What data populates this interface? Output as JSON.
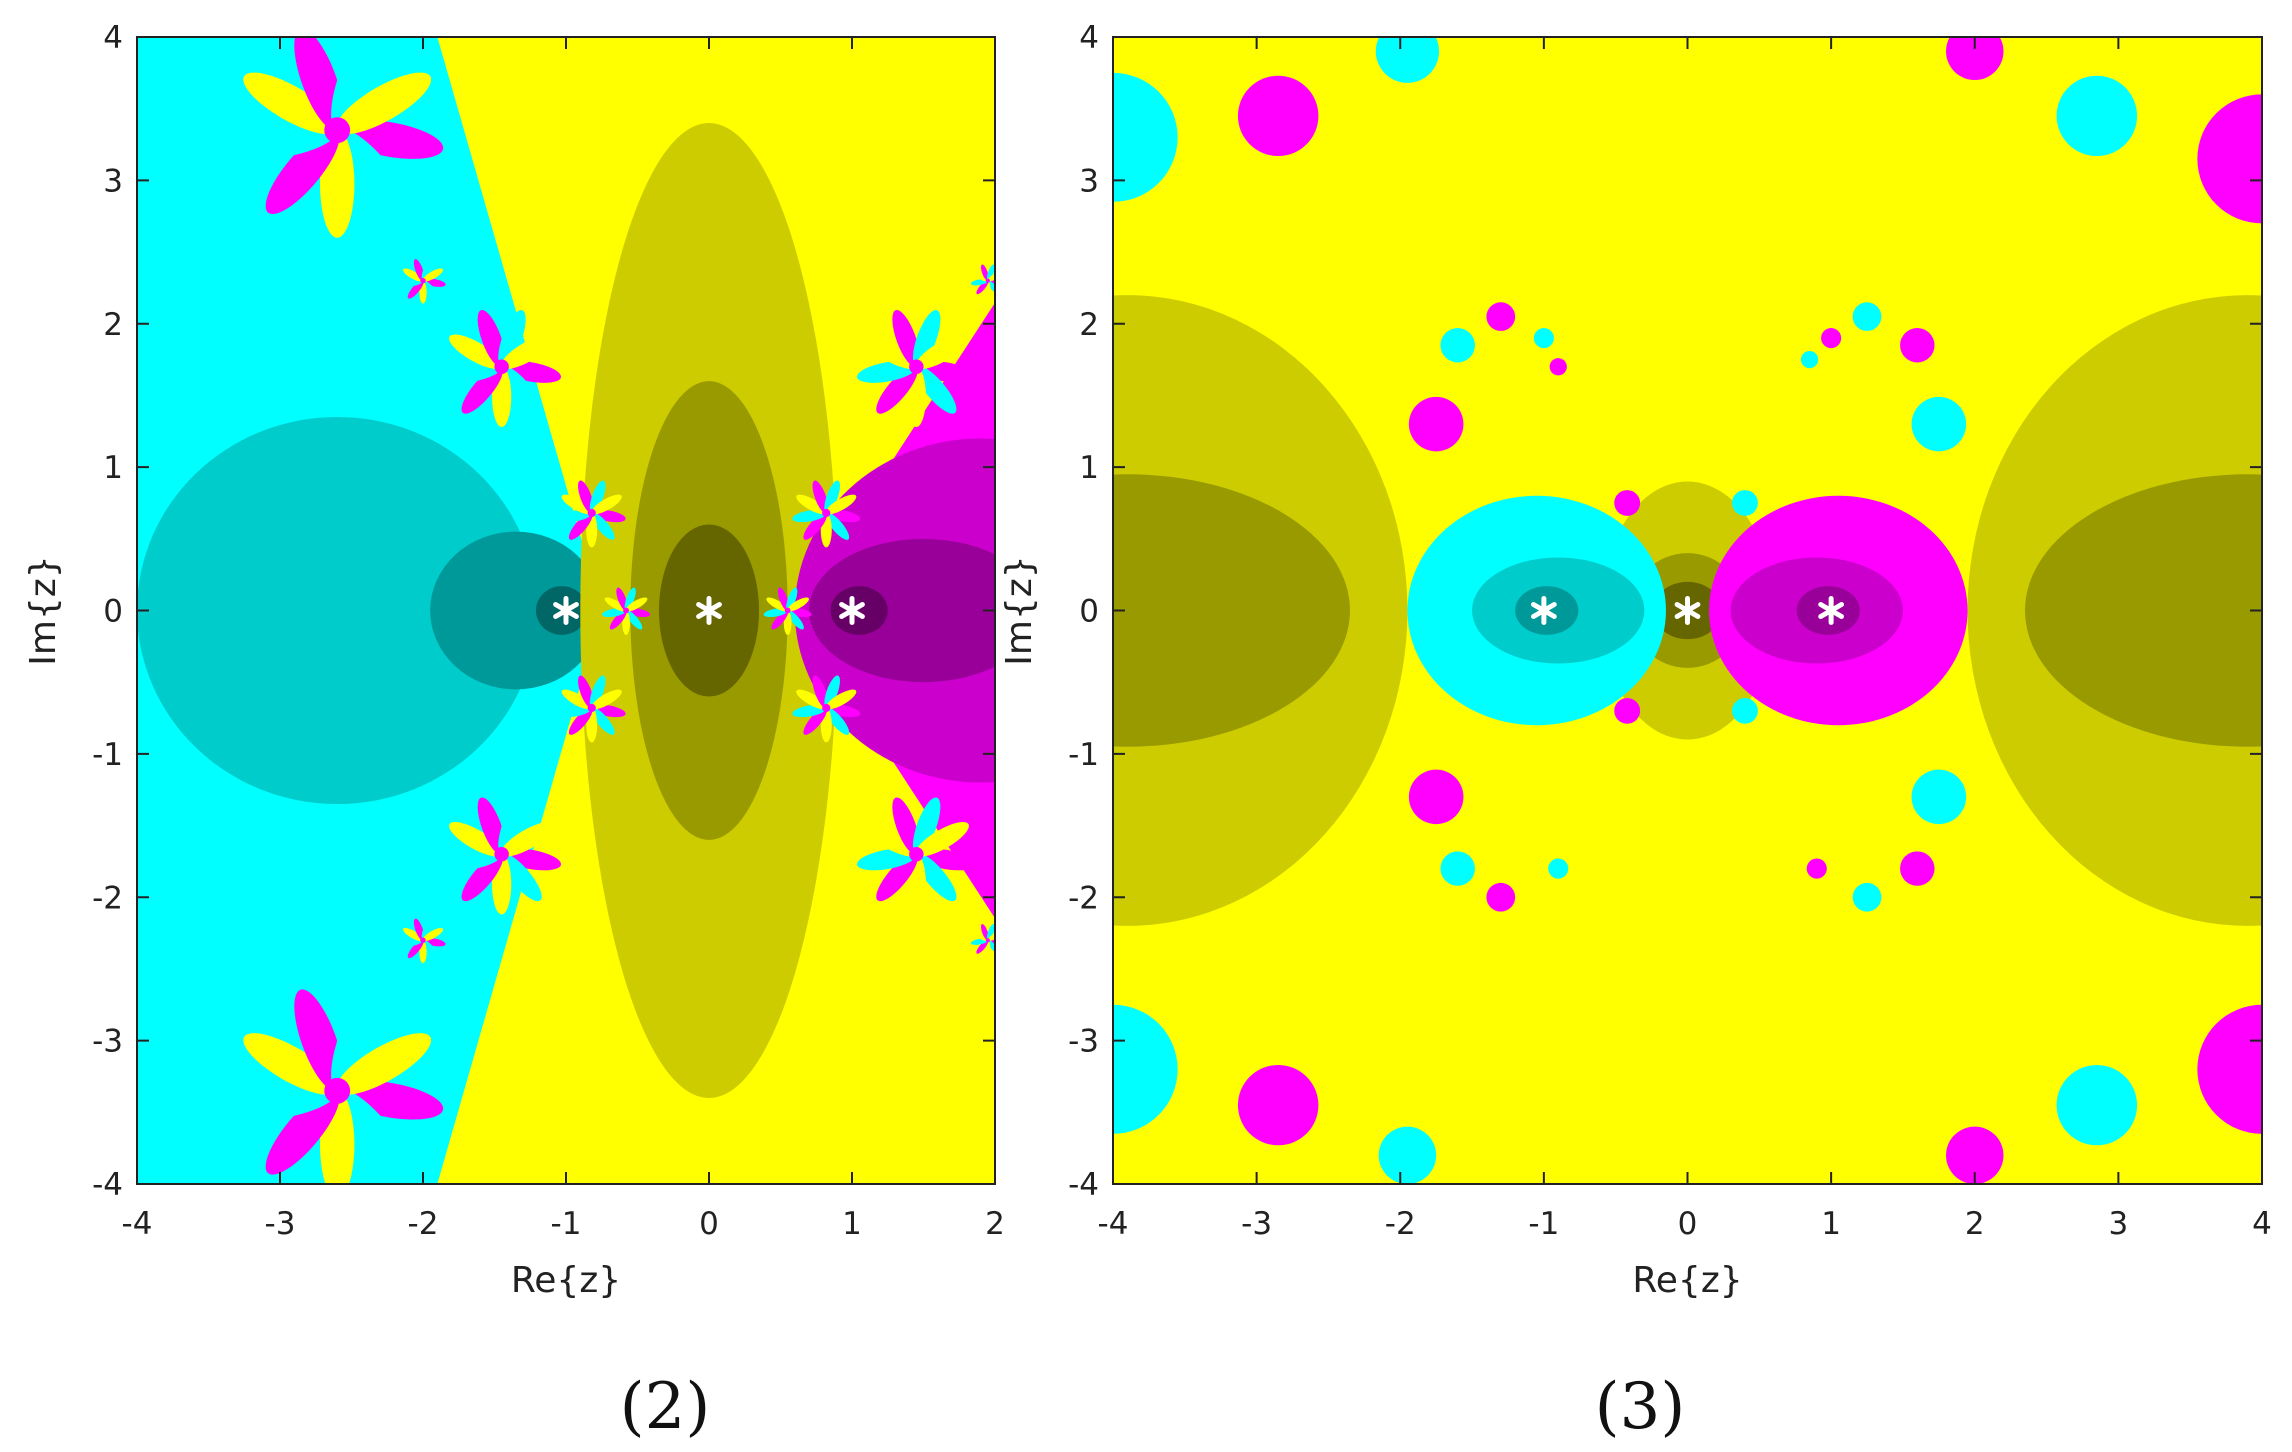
{
  "figure": {
    "colors": {
      "cyan_region": "#00ffff",
      "magenta_region": "#ff00ff",
      "yellow_region": "#ffff00",
      "cyan_shade_1": "#00cccc",
      "cyan_shade_2": "#009999",
      "cyan_shade_3": "#006666",
      "magenta_shade_1": "#cc00cc",
      "magenta_shade_2": "#990099",
      "magenta_shade_3": "#660066",
      "yellow_shade_1": "#cccc00",
      "yellow_shade_2": "#999900",
      "yellow_shade_3": "#666600",
      "root_marker": "#ffffff"
    }
  },
  "chart_data": [
    {
      "type": "heatmap",
      "panel_label": "(2)",
      "title": "",
      "xlabel": "Re{z}",
      "ylabel": "Im{z}",
      "xlim": [
        -4,
        2
      ],
      "ylim": [
        -4,
        4
      ],
      "xticks": [
        -4,
        -3,
        -2,
        -1,
        0,
        1,
        2
      ],
      "xtick_labels": [
        "-4",
        "-3",
        "-2",
        "-1",
        "0",
        "1",
        "2"
      ],
      "yticks": [
        -4,
        -3,
        -2,
        -1,
        0,
        1,
        2,
        3,
        4
      ],
      "ytick_labels": [
        "-4",
        "-3",
        "-2",
        "-1",
        "0",
        "1",
        "2",
        "3",
        "4"
      ],
      "background_basin": "yellow_region",
      "basin_regions": [
        {
          "basin": "cyan_region",
          "description": "left wedge",
          "boundary_x_at_top": -1.9,
          "boundary_x_at_center": -0.75
        },
        {
          "basin": "magenta_region",
          "description": "right wedge",
          "boundary_x_at_top": 2.0,
          "boundary_x_at_center": 0.6
        }
      ],
      "convergence_shading": [
        {
          "basin": "cyan",
          "levels": [
            {
              "shade": "cyan_shade_1",
              "cx": -2.6,
              "cy": 0,
              "rx": 1.4,
              "ry": 1.35
            },
            {
              "shade": "cyan_shade_2",
              "cx": -1.35,
              "cy": 0,
              "rx": 0.6,
              "ry": 0.55
            },
            {
              "shade": "cyan_shade_3",
              "cx": -1.03,
              "cy": 0,
              "rx": 0.18,
              "ry": 0.17
            }
          ]
        },
        {
          "basin": "yellow",
          "levels": [
            {
              "shade": "yellow_shade_1",
              "cx": 0,
              "cy": 0,
              "rx": 0.9,
              "ry": 3.4
            },
            {
              "shade": "yellow_shade_2",
              "cx": 0,
              "cy": 0,
              "rx": 0.55,
              "ry": 1.6
            },
            {
              "shade": "yellow_shade_3",
              "cx": 0,
              "cy": 0,
              "rx": 0.35,
              "ry": 0.6
            }
          ]
        },
        {
          "basin": "magenta",
          "levels": [
            {
              "shade": "magenta_shade_1",
              "cx": 1.9,
              "cy": 0,
              "rx": 1.3,
              "ry": 1.2
            },
            {
              "shade": "magenta_shade_2",
              "cx": 1.5,
              "cy": 0,
              "rx": 0.8,
              "ry": 0.5
            },
            {
              "shade": "magenta_shade_3",
              "cx": 1.05,
              "cy": 0,
              "rx": 0.2,
              "ry": 0.17
            }
          ]
        }
      ],
      "fractal_flowers": [
        {
          "x": -2.6,
          "y": 3.35,
          "size": 0.75
        },
        {
          "x": -2.6,
          "y": -3.35,
          "size": 0.75
        },
        {
          "x": -1.45,
          "y": 1.7,
          "size": 0.42
        },
        {
          "x": -1.45,
          "y": -1.7,
          "size": 0.42
        },
        {
          "x": 1.45,
          "y": 1.7,
          "size": 0.42
        },
        {
          "x": 1.45,
          "y": -1.7,
          "size": 0.42
        },
        {
          "x": -2.0,
          "y": 2.3,
          "size": 0.16
        },
        {
          "x": -2.0,
          "y": -2.3,
          "size": 0.16
        },
        {
          "x": -0.82,
          "y": 0.68,
          "size": 0.24
        },
        {
          "x": -0.82,
          "y": -0.68,
          "size": 0.24
        },
        {
          "x": 0.82,
          "y": 0.68,
          "size": 0.24
        },
        {
          "x": 0.82,
          "y": -0.68,
          "size": 0.24
        },
        {
          "x": -0.58,
          "y": 0,
          "size": 0.17
        },
        {
          "x": 0.55,
          "y": 0,
          "size": 0.17
        },
        {
          "x": 1.95,
          "y": 2.3,
          "size": 0.12
        },
        {
          "x": 1.95,
          "y": -2.3,
          "size": 0.12
        }
      ],
      "roots": [
        {
          "x": -1,
          "y": 0
        },
        {
          "x": 0,
          "y": 0
        },
        {
          "x": 1,
          "y": 0
        }
      ]
    },
    {
      "type": "heatmap",
      "panel_label": "(3)",
      "title": "",
      "xlabel": "Re{z}",
      "ylabel": "Im{z}",
      "xlim": [
        -4,
        4
      ],
      "ylim": [
        -4,
        4
      ],
      "xticks": [
        -4,
        -3,
        -2,
        -1,
        0,
        1,
        2,
        3,
        4
      ],
      "xtick_labels": [
        "-4",
        "-3",
        "-2",
        "-1",
        "0",
        "1",
        "2",
        "3",
        "4"
      ],
      "yticks": [
        -4,
        -3,
        -2,
        -1,
        0,
        1,
        2,
        3,
        4
      ],
      "ytick_labels": [
        "-4",
        "-3",
        "-2",
        "-1",
        "0",
        "1",
        "2",
        "3",
        "4"
      ],
      "background_basin": "yellow_region",
      "convergence_shading": [
        {
          "basin": "yellow",
          "levels": [
            {
              "shade": "yellow_shade_1",
              "cx": -3.9,
              "cy": 0,
              "rx": 1.95,
              "ry": 2.2
            },
            {
              "shade": "yellow_shade_2",
              "cx": -3.9,
              "cy": 0,
              "rx": 1.55,
              "ry": 0.95
            },
            {
              "shade": "yellow_shade_1",
              "cx": 3.9,
              "cy": 0,
              "rx": 1.95,
              "ry": 2.2
            },
            {
              "shade": "yellow_shade_2",
              "cx": 3.9,
              "cy": 0,
              "rx": 1.55,
              "ry": 0.95
            },
            {
              "shade": "yellow_shade_1",
              "cx": 0,
              "cy": 0,
              "rx": 0.6,
              "ry": 0.9
            },
            {
              "shade": "yellow_shade_2",
              "cx": 0,
              "cy": 0,
              "rx": 0.4,
              "ry": 0.4
            },
            {
              "shade": "yellow_shade_3",
              "cx": 0,
              "cy": 0,
              "rx": 0.24,
              "ry": 0.2
            }
          ]
        },
        {
          "basin": "cyan",
          "levels": [
            {
              "shade": "cyan_region",
              "cx": -1.05,
              "cy": 0,
              "rx": 0.9,
              "ry": 0.8
            },
            {
              "shade": "cyan_shade_1",
              "cx": -0.9,
              "cy": 0,
              "rx": 0.6,
              "ry": 0.37
            },
            {
              "shade": "cyan_shade_2",
              "cx": -0.98,
              "cy": 0,
              "rx": 0.22,
              "ry": 0.17
            }
          ]
        },
        {
          "basin": "magenta",
          "levels": [
            {
              "shade": "magenta_region",
              "cx": 1.05,
              "cy": 0,
              "rx": 0.9,
              "ry": 0.8
            },
            {
              "shade": "magenta_shade_1",
              "cx": 0.9,
              "cy": 0,
              "rx": 0.6,
              "ry": 0.37
            },
            {
              "shade": "magenta_shade_2",
              "cx": 0.98,
              "cy": 0,
              "rx": 0.22,
              "ry": 0.17
            }
          ]
        }
      ],
      "basin_blobs": [
        {
          "basin": "cyan_region",
          "x": -1.95,
          "y": 3.9,
          "r": 0.22
        },
        {
          "basin": "magenta_region",
          "x": -2.85,
          "y": 3.45,
          "r": 0.28
        },
        {
          "basin": "cyan_region",
          "x": -4.0,
          "y": 3.3,
          "r": 0.45
        },
        {
          "basin": "magenta_region",
          "x": 2.0,
          "y": 3.9,
          "r": 0.2
        },
        {
          "basin": "cyan_region",
          "x": 2.85,
          "y": 3.45,
          "r": 0.28
        },
        {
          "basin": "magenta_region",
          "x": 4.0,
          "y": 3.15,
          "r": 0.45
        },
        {
          "basin": "cyan_region",
          "x": -1.95,
          "y": -3.8,
          "r": 0.2
        },
        {
          "basin": "magenta_region",
          "x": -2.85,
          "y": -3.45,
          "r": 0.28
        },
        {
          "basin": "cyan_region",
          "x": -4.0,
          "y": -3.2,
          "r": 0.45
        },
        {
          "basin": "magenta_region",
          "x": 2.0,
          "y": -3.8,
          "r": 0.2
        },
        {
          "basin": "cyan_region",
          "x": 2.85,
          "y": -3.45,
          "r": 0.28
        },
        {
          "basin": "magenta_region",
          "x": 4.0,
          "y": -3.2,
          "r": 0.45
        },
        {
          "basin": "magenta_region",
          "x": -1.75,
          "y": 1.3,
          "r": 0.19
        },
        {
          "basin": "cyan_region",
          "x": -1.6,
          "y": 1.85,
          "r": 0.12
        },
        {
          "basin": "magenta_region",
          "x": -1.3,
          "y": 2.05,
          "r": 0.1
        },
        {
          "basin": "cyan_region",
          "x": -1.0,
          "y": 1.9,
          "r": 0.07
        },
        {
          "basin": "magenta_region",
          "x": -0.9,
          "y": 1.7,
          "r": 0.06
        },
        {
          "basin": "cyan_region",
          "x": 1.75,
          "y": 1.3,
          "r": 0.19
        },
        {
          "basin": "magenta_region",
          "x": 1.6,
          "y": 1.85,
          "r": 0.12
        },
        {
          "basin": "cyan_region",
          "x": 1.25,
          "y": 2.05,
          "r": 0.1
        },
        {
          "basin": "magenta_region",
          "x": 1.0,
          "y": 1.9,
          "r": 0.07
        },
        {
          "basin": "cyan_region",
          "x": 0.85,
          "y": 1.75,
          "r": 0.06
        },
        {
          "basin": "magenta_region",
          "x": -1.75,
          "y": -1.3,
          "r": 0.19
        },
        {
          "basin": "cyan_region",
          "x": -1.6,
          "y": -1.8,
          "r": 0.12
        },
        {
          "basin": "magenta_region",
          "x": -1.3,
          "y": -2.0,
          "r": 0.1
        },
        {
          "basin": "cyan_region",
          "x": -0.9,
          "y": -1.8,
          "r": 0.07
        },
        {
          "basin": "cyan_region",
          "x": 1.75,
          "y": -1.3,
          "r": 0.19
        },
        {
          "basin": "magenta_region",
          "x": 1.6,
          "y": -1.8,
          "r": 0.12
        },
        {
          "basin": "cyan_region",
          "x": 1.25,
          "y": -2.0,
          "r": 0.1
        },
        {
          "basin": "magenta_region",
          "x": 0.9,
          "y": -1.8,
          "r": 0.07
        },
        {
          "basin": "magenta_region",
          "x": -0.42,
          "y": 0.75,
          "r": 0.09
        },
        {
          "basin": "cyan_region",
          "x": 0.4,
          "y": 0.75,
          "r": 0.09
        },
        {
          "basin": "magenta_region",
          "x": -0.42,
          "y": -0.7,
          "r": 0.09
        },
        {
          "basin": "cyan_region",
          "x": 0.4,
          "y": -0.7,
          "r": 0.09
        }
      ],
      "roots": [
        {
          "x": -1,
          "y": 0
        },
        {
          "x": 0,
          "y": 0
        },
        {
          "x": 1,
          "y": 0
        }
      ]
    }
  ]
}
